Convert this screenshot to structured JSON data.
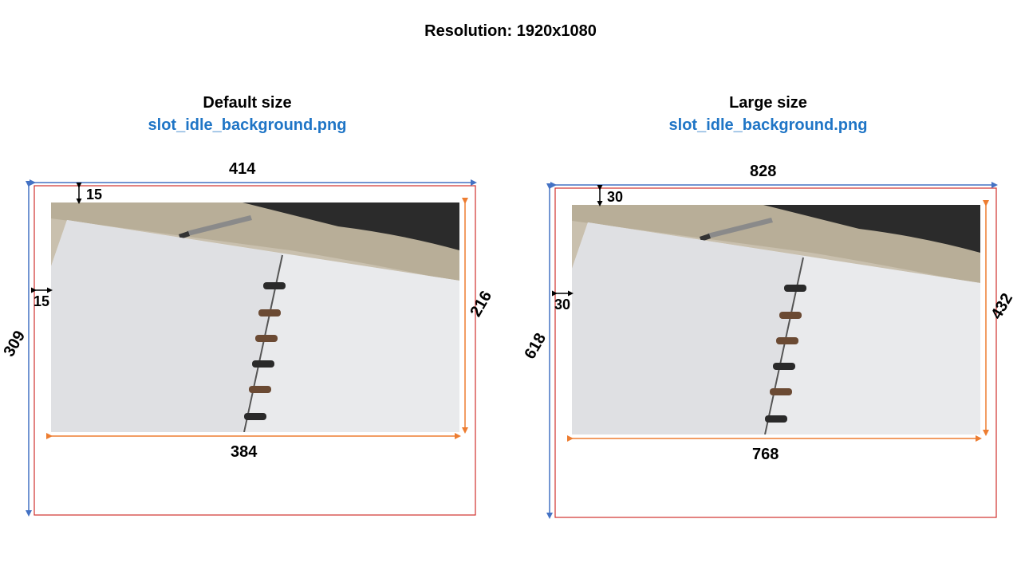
{
  "resolution": "Resolution: 1920x1080",
  "colors": {
    "outer_box": "#d0312d",
    "outer_arrow": "#4472c4",
    "inner_arrow": "#ed7d31",
    "filename": "#1f75c6"
  },
  "panels": [
    {
      "title": "Default size",
      "filename": "slot_idle_background.png",
      "outer_width": "414",
      "outer_height": "309",
      "inner_width": "384",
      "inner_height": "216",
      "top_margin": "15",
      "left_margin": "15"
    },
    {
      "title": "Large size",
      "filename": "slot_idle_background.png",
      "outer_width": "828",
      "outer_height": "618",
      "inner_width": "768",
      "inner_height": "432",
      "top_margin": "30",
      "left_margin": "30"
    }
  ]
}
